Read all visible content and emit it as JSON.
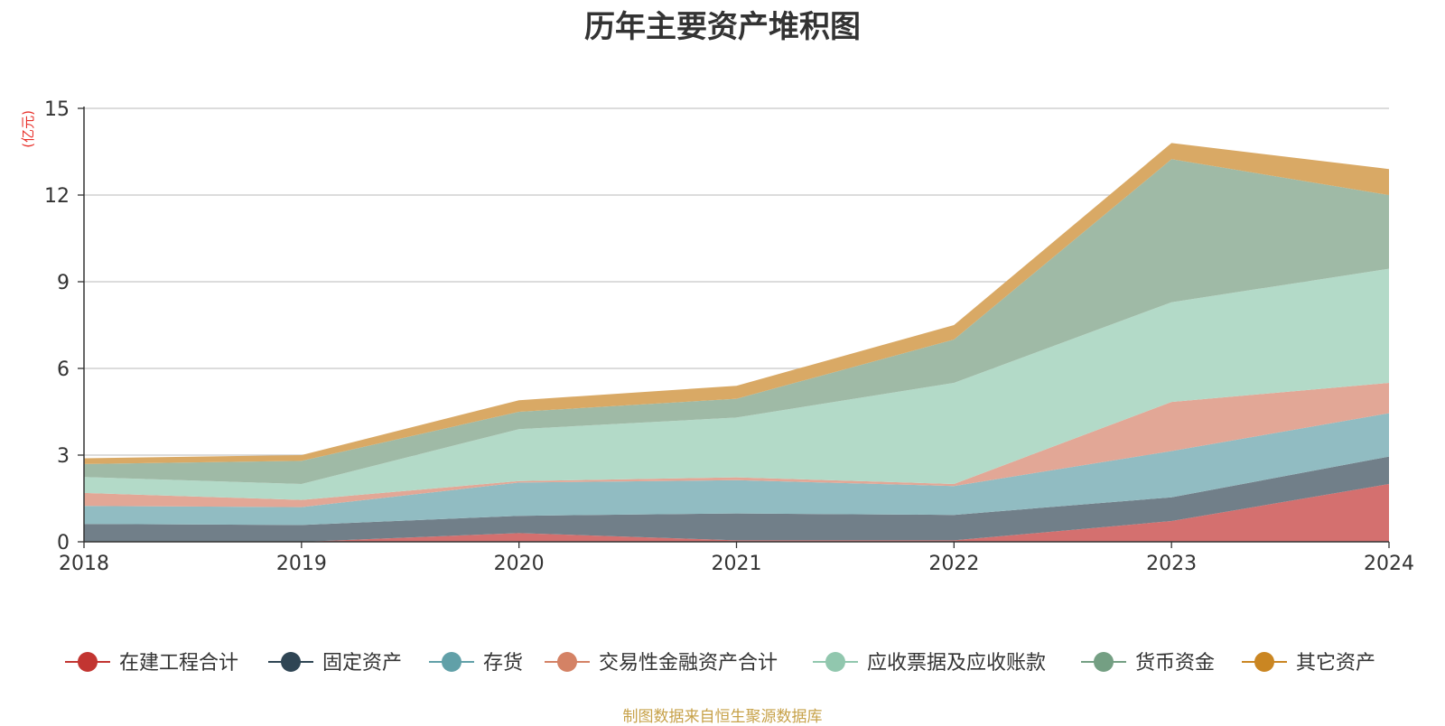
{
  "chart_data": {
    "type": "area",
    "stacked": true,
    "title": "历年主要资产堆积图",
    "ylabel": "(亿元)",
    "xlabel": "",
    "x": [
      "2018",
      "2019",
      "2020",
      "2021",
      "2022",
      "2023",
      "2024"
    ],
    "ylim": [
      0,
      15
    ],
    "yticks": [
      "0",
      "3",
      "6",
      "9",
      "12",
      "15"
    ],
    "grid": true,
    "legend_position": "bottom",
    "series": [
      {
        "name": "在建工程合计",
        "color": "#c23531",
        "fill": "#d4706f",
        "values": [
          0.0,
          0.0,
          0.3,
          0.05,
          0.05,
          0.72,
          2.0
        ]
      },
      {
        "name": "固定资产",
        "color": "#2f4554",
        "fill": "#717f89",
        "values": [
          0.62,
          0.58,
          0.6,
          0.93,
          0.88,
          0.82,
          0.95
        ]
      },
      {
        "name": "存货",
        "color": "#61a0a8",
        "fill": "#91bcc2",
        "values": [
          0.62,
          0.62,
          1.15,
          1.15,
          1.0,
          1.6,
          1.5
        ]
      },
      {
        "name": "交易性金融资产合计",
        "color": "#d48265",
        "fill": "#e2a796",
        "values": [
          0.45,
          0.25,
          0.05,
          0.1,
          0.07,
          1.7,
          1.05
        ]
      },
      {
        "name": "应收票据及应收账款",
        "color": "#91c7ae",
        "fill": "#b3dac8",
        "values": [
          0.55,
          0.55,
          1.8,
          2.07,
          3.5,
          3.45,
          3.95
        ]
      },
      {
        "name": "货币资金",
        "color": "#749f83",
        "fill": "#9fbaa6",
        "values": [
          0.45,
          0.8,
          0.6,
          0.65,
          1.5,
          4.95,
          2.55
        ]
      },
      {
        "name": "其它资产",
        "color": "#ca8622",
        "fill": "#d9a965",
        "values": [
          0.2,
          0.2,
          0.4,
          0.45,
          0.5,
          0.56,
          0.9
        ]
      }
    ]
  },
  "source_note": "制图数据来自恒生聚源数据库"
}
